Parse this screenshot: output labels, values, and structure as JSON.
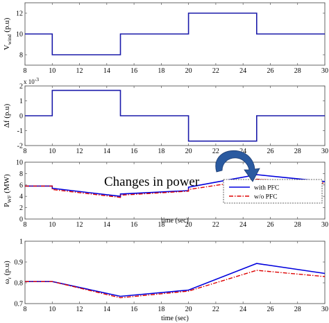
{
  "annotation": {
    "text": "Changes in power",
    "arrow_color": "#2a5aa0"
  },
  "colors": {
    "with_pfc": "#0000dd",
    "without_pfc": "#dd0000",
    "step": "#1a1aaa"
  },
  "chart_data": [
    {
      "id": "vwind",
      "type": "line",
      "ylabel": {
        "main": "V",
        "sub": "wind",
        "rest": " (p.u)"
      },
      "xlabel": "",
      "xlim": [
        8,
        30
      ],
      "ylim": [
        7,
        13
      ],
      "xticks": [
        "8",
        "10",
        "12",
        "14",
        "16",
        "18",
        "20",
        "22",
        "24",
        "26",
        "28",
        "30"
      ],
      "yticks": [
        "8",
        "10",
        "12"
      ],
      "ytick_values": [
        8,
        10,
        12
      ],
      "grid": false,
      "series": [
        {
          "style": "step",
          "x": [
            8,
            10,
            10,
            15,
            15,
            20,
            20,
            25,
            25,
            30
          ],
          "y": [
            10,
            10,
            8,
            8,
            10,
            10,
            12,
            12,
            10,
            10
          ]
        }
      ]
    },
    {
      "id": "df",
      "type": "line",
      "ylabel": {
        "main": "Δf (p.u)",
        "sub": "",
        "rest": ""
      },
      "exponent": "x 10",
      "exponent_power": "-3",
      "xlabel": "",
      "xlim": [
        8,
        30
      ],
      "ylim": [
        -2,
        2
      ],
      "xticks": [
        "8",
        "10",
        "12",
        "14",
        "16",
        "18",
        "20",
        "22",
        "24",
        "26",
        "28",
        "30"
      ],
      "yticks": [
        "-2",
        "-1",
        "0",
        "1",
        "2"
      ],
      "ytick_values": [
        -2,
        -1,
        0,
        1,
        2
      ],
      "grid": false,
      "series": [
        {
          "style": "step",
          "x": [
            8,
            10,
            10,
            15,
            15,
            20,
            20,
            25,
            25,
            30
          ],
          "y": [
            0,
            0,
            1.7,
            1.7,
            0,
            0,
            -1.7,
            -1.7,
            0,
            0
          ]
        }
      ]
    },
    {
      "id": "pwf",
      "type": "line",
      "ylabel": {
        "main": "P",
        "sub": "WF",
        "rest": " (MW)"
      },
      "xlabel": "time (sec)",
      "xlim": [
        8,
        30
      ],
      "ylim": [
        0,
        10
      ],
      "xticks": [
        "8",
        "10",
        "12",
        "14",
        "16",
        "18",
        "20",
        "22",
        "24",
        "26",
        "28",
        "30"
      ],
      "yticks": [
        "0",
        "2",
        "4",
        "6",
        "8",
        "10"
      ],
      "ytick_values": [
        0,
        2,
        4,
        6,
        8,
        10
      ],
      "grid": false,
      "legend": {
        "placement": "lower-right"
      },
      "series": [
        {
          "name": "with PFC",
          "style": "solid",
          "x": [
            8,
            10,
            10,
            15,
            15,
            20,
            20,
            25,
            30
          ],
          "y": [
            5.8,
            5.8,
            5.4,
            4.0,
            4.4,
            5.0,
            5.6,
            7.8,
            6.6
          ]
        },
        {
          "name": "w/o PFC",
          "style": "dashdot",
          "x": [
            8,
            10,
            10,
            15,
            15,
            20,
            20,
            25,
            30
          ],
          "y": [
            5.8,
            5.8,
            5.2,
            3.8,
            4.2,
            4.9,
            5.2,
            7.0,
            6.3
          ]
        }
      ]
    },
    {
      "id": "wr",
      "type": "line",
      "ylabel": {
        "main": "ω",
        "sub": "r",
        "rest": " (p.u)"
      },
      "xlabel": "time (sec)",
      "xlim": [
        8,
        30
      ],
      "ylim": [
        0.7,
        1.0
      ],
      "xticks": [
        "8",
        "10",
        "12",
        "14",
        "16",
        "18",
        "20",
        "22",
        "24",
        "26",
        "28",
        "30"
      ],
      "yticks": [
        "0.7",
        "0.8",
        "0.9",
        "1"
      ],
      "ytick_values": [
        0.7,
        0.8,
        0.9,
        1.0
      ],
      "grid": false,
      "series": [
        {
          "name": "with PFC",
          "style": "solid",
          "x": [
            8,
            10,
            15,
            20,
            25,
            30
          ],
          "y": [
            0.806,
            0.806,
            0.735,
            0.765,
            0.893,
            0.845
          ]
        },
        {
          "name": "w/o PFC",
          "style": "dashdot",
          "x": [
            8,
            10,
            15,
            20,
            25,
            30
          ],
          "y": [
            0.806,
            0.806,
            0.728,
            0.76,
            0.86,
            0.83
          ]
        }
      ]
    }
  ]
}
